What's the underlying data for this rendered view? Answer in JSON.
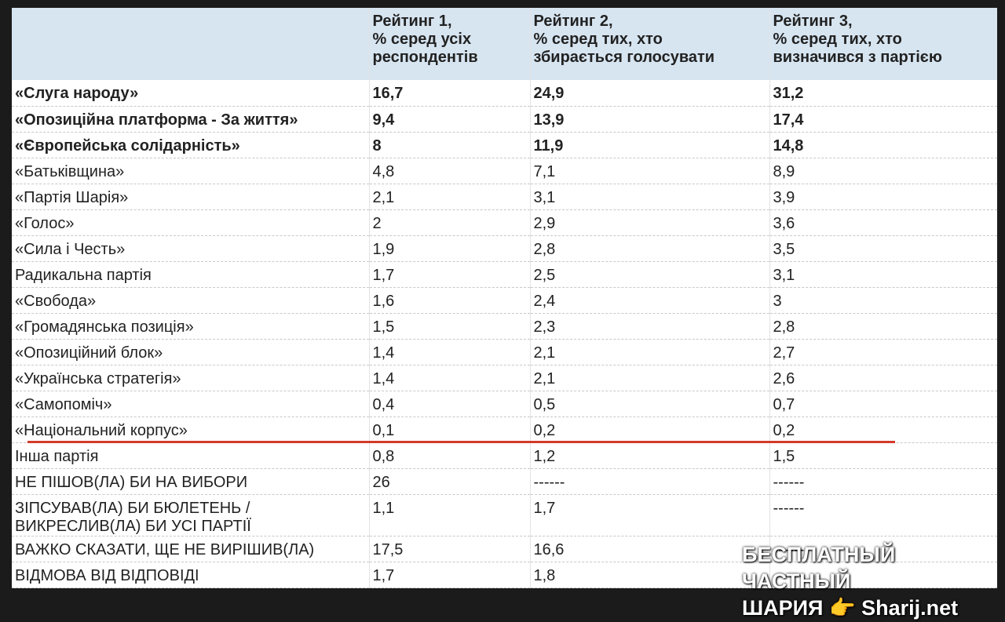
{
  "table": {
    "header": [
      "Рейтинг 1,\n% серед усіх\nреспондентів",
      "Рейтинг 2,\n% серед тих, хто\nзбирається голосувати",
      "Рейтинг 3,\n% серед тих, хто\nвизначився з партією"
    ],
    "rows": [
      {
        "bold": true,
        "cells": [
          "«Слуга народу»",
          "16,7",
          "24,9",
          "31,2"
        ]
      },
      {
        "bold": true,
        "cells": [
          "«Опозиційна платформа - За життя»",
          "9,4",
          "13,9",
          "17,4"
        ]
      },
      {
        "bold": true,
        "cells": [
          "«Європейська солідарність»",
          "8",
          "11,9",
          "14,8"
        ]
      },
      {
        "cells": [
          "«Батьківщина»",
          "4,8",
          "7,1",
          "8,9"
        ]
      },
      {
        "cells": [
          "«Партія Шарія»",
          "2,1",
          "3,1",
          "3,9"
        ]
      },
      {
        "cells": [
          "«Голос»",
          "2",
          "2,9",
          "3,6"
        ]
      },
      {
        "cells": [
          "«Сила і Честь»",
          "1,9",
          "2,8",
          "3,5"
        ]
      },
      {
        "cells": [
          "Радикальна партія",
          "1,7",
          "2,5",
          "3,1"
        ]
      },
      {
        "cells": [
          "«Свобода»",
          "1,6",
          "2,4",
          "3"
        ]
      },
      {
        "cells": [
          "«Громадянська позиція»",
          "1,5",
          "2,3",
          "2,8"
        ]
      },
      {
        "cells": [
          "«Опозиційний блок»",
          "1,4",
          "2,1",
          "2,7"
        ]
      },
      {
        "cells": [
          "«Українська стратегія»",
          "1,4",
          "2,1",
          "2,6"
        ]
      },
      {
        "cells": [
          "«Самопоміч»",
          "0,4",
          "0,5",
          "0,7"
        ]
      },
      {
        "underline": true,
        "cells": [
          "«Національний корпус»",
          "0,1",
          "0,2",
          "0,2"
        ]
      },
      {
        "cells": [
          "Інша партія",
          "0,8",
          "1,2",
          "1,5"
        ]
      },
      {
        "cells": [
          "НЕ ПІШОВ(ЛА) БИ НА ВИБОРИ",
          "26",
          "------",
          "------"
        ]
      },
      {
        "cells": [
          "ЗІПСУВАВ(ЛА) БИ БЮЛЕТЕНЬ /\nВИКРЕСЛИВ(ЛА) БИ УСІ ПАРТІЇ",
          "1,1",
          "1,7",
          "------"
        ]
      },
      {
        "cells": [
          "ВАЖКО СКАЗАТИ, ЩЕ НЕ ВИРІШИВ(ЛА)",
          "17,5",
          "16,6",
          "------"
        ]
      },
      {
        "cells": [
          "ВІДМОВА ВІД ВІДПОВІДІ",
          "1,7",
          "1,8",
          "------"
        ]
      }
    ]
  },
  "watermark": [
    "БЕСПЛАТНЫЙ ЧАСТНЫЙ",
    "ШАРИЯ",
    "Sharij.net"
  ]
}
